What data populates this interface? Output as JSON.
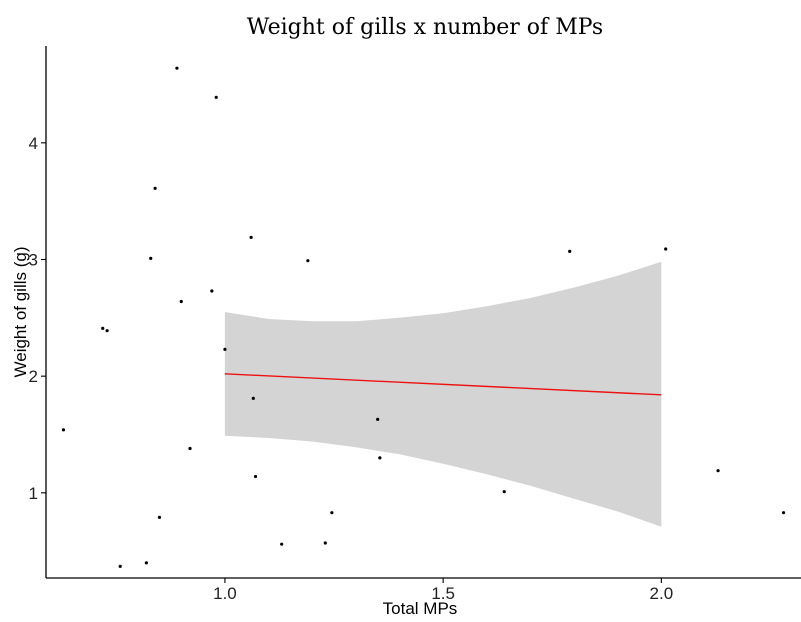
{
  "chart_data": {
    "type": "scatter",
    "title": "Weight of gills x number of MPs",
    "xlabel": "Total MPs",
    "ylabel": "Weight of gills (g)",
    "xlim": [
      0.59,
      2.32
    ],
    "ylim": [
      0.27,
      4.83
    ],
    "x_ticks": [
      1.0,
      1.5,
      2.0
    ],
    "x_tick_labels": [
      "1.0",
      "1.5",
      "2.0"
    ],
    "y_ticks": [
      1,
      2,
      3,
      4
    ],
    "y_tick_labels": [
      "1",
      "2",
      "3",
      "4"
    ],
    "grid": false,
    "points": [
      {
        "x": 0.63,
        "y": 1.54
      },
      {
        "x": 0.72,
        "y": 2.41
      },
      {
        "x": 0.73,
        "y": 2.39
      },
      {
        "x": 0.76,
        "y": 0.37
      },
      {
        "x": 0.82,
        "y": 0.4
      },
      {
        "x": 0.83,
        "y": 3.01
      },
      {
        "x": 0.84,
        "y": 3.61
      },
      {
        "x": 0.85,
        "y": 0.79
      },
      {
        "x": 0.89,
        "y": 4.64
      },
      {
        "x": 0.9,
        "y": 2.64
      },
      {
        "x": 0.92,
        "y": 1.38
      },
      {
        "x": 0.97,
        "y": 2.73
      },
      {
        "x": 0.98,
        "y": 4.39
      },
      {
        "x": 1.0,
        "y": 2.23
      },
      {
        "x": 1.06,
        "y": 3.19
      },
      {
        "x": 1.065,
        "y": 1.81
      },
      {
        "x": 1.07,
        "y": 1.14
      },
      {
        "x": 1.13,
        "y": 0.56
      },
      {
        "x": 1.19,
        "y": 2.99
      },
      {
        "x": 1.23,
        "y": 0.57
      },
      {
        "x": 1.245,
        "y": 0.83
      },
      {
        "x": 1.35,
        "y": 1.63
      },
      {
        "x": 1.355,
        "y": 1.3
      },
      {
        "x": 1.64,
        "y": 1.01
      },
      {
        "x": 1.79,
        "y": 3.07
      },
      {
        "x": 2.01,
        "y": 3.09
      },
      {
        "x": 2.13,
        "y": 1.19
      },
      {
        "x": 2.28,
        "y": 0.83
      }
    ],
    "fit_line": {
      "color": "#ee1111",
      "x": [
        1.0,
        2.0
      ],
      "y": [
        2.02,
        1.84
      ]
    },
    "confidence_band": {
      "color": "#d4d4d4",
      "x": [
        1.0,
        1.1,
        1.2,
        1.3,
        1.4,
        1.5,
        1.6,
        1.7,
        1.8,
        1.9,
        2.0
      ],
      "upper": [
        2.55,
        2.49,
        2.47,
        2.47,
        2.5,
        2.54,
        2.6,
        2.67,
        2.76,
        2.86,
        2.98
      ],
      "lower": [
        1.49,
        1.47,
        1.44,
        1.39,
        1.33,
        1.25,
        1.16,
        1.06,
        0.95,
        0.84,
        0.71
      ]
    }
  }
}
